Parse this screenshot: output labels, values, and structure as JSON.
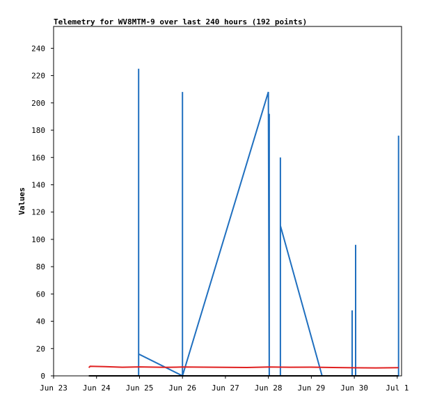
{
  "chart_data": {
    "type": "line",
    "title": "Telemetry for WV8MTM-9 over last 240 hours (192 points)",
    "xlabel": "",
    "ylabel": "Values",
    "x_ticks": [
      {
        "label": "Jun 23",
        "x": 0
      },
      {
        "label": "Jun 24",
        "x": 1
      },
      {
        "label": "Jun 25",
        "x": 2
      },
      {
        "label": "Jun 26",
        "x": 3
      },
      {
        "label": "Jun 27",
        "x": 4
      },
      {
        "label": "Jun 28",
        "x": 5
      },
      {
        "label": "Jun 29",
        "x": 6
      },
      {
        "label": "Jun 30",
        "x": 7
      },
      {
        "label": "Jul 1",
        "x": 8
      }
    ],
    "y_ticks": [
      0,
      20,
      40,
      60,
      80,
      100,
      120,
      140,
      160,
      180,
      200,
      220,
      240
    ],
    "xlim": [
      0,
      8.1
    ],
    "ylim": [
      0,
      256
    ],
    "grid": false,
    "legend": "none",
    "series": [
      {
        "color": "#1f6fbf",
        "points": [
          [
            1.98,
            0
          ],
          [
            1.98,
            225
          ],
          [
            1.98,
            16
          ],
          [
            3.0,
            0
          ],
          [
            3.0,
            208
          ],
          [
            3.0,
            0
          ],
          [
            5.0,
            208
          ],
          [
            5.02,
            0
          ],
          [
            5.02,
            192
          ],
          [
            5.02,
            0
          ],
          [
            5.28,
            0
          ],
          [
            5.28,
            160
          ],
          [
            5.28,
            110
          ],
          [
            6.25,
            0
          ],
          [
            6.95,
            0
          ],
          [
            6.95,
            48
          ],
          [
            6.95,
            0
          ],
          [
            7.03,
            0
          ],
          [
            7.03,
            96
          ],
          [
            7.03,
            0
          ],
          [
            8.03,
            0
          ],
          [
            8.03,
            176
          ],
          [
            8.03,
            0
          ]
        ]
      },
      {
        "color": "#e02020",
        "points": [
          [
            0.82,
            6
          ],
          [
            0.85,
            7
          ],
          [
            1.2,
            6.8
          ],
          [
            1.6,
            6.3
          ],
          [
            2.0,
            6.6
          ],
          [
            2.6,
            6.2
          ],
          [
            3.0,
            6.5
          ],
          [
            3.5,
            6.4
          ],
          [
            4.0,
            6.2
          ],
          [
            4.5,
            6.1
          ],
          [
            5.0,
            6.5
          ],
          [
            5.5,
            6.3
          ],
          [
            6.0,
            6.4
          ],
          [
            6.5,
            6.1
          ],
          [
            7.0,
            5.9
          ],
          [
            7.5,
            5.8
          ],
          [
            8.03,
            6.0
          ]
        ]
      },
      {
        "color": "#000000",
        "points": [
          [
            0.82,
            0
          ],
          [
            8.03,
            0
          ]
        ]
      }
    ]
  }
}
